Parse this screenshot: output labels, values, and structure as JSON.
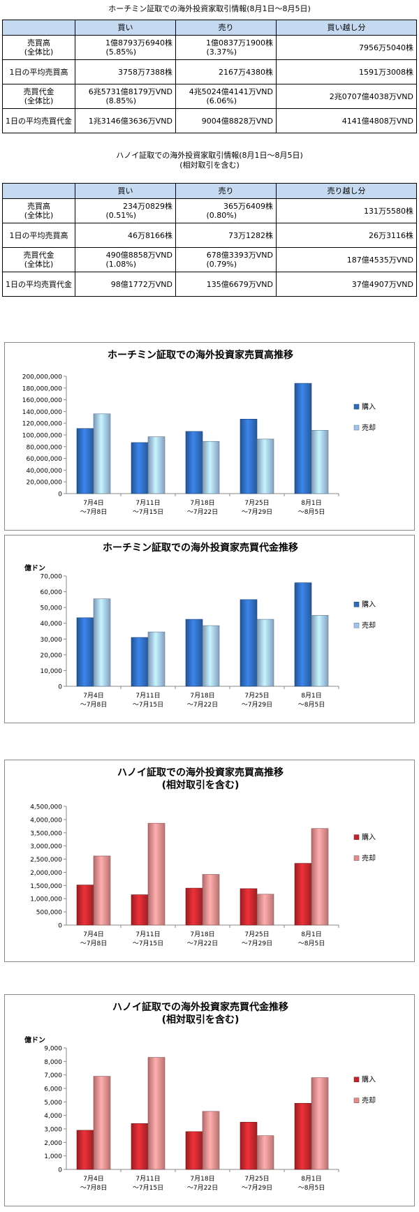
{
  "hcm_table": {
    "title": "ホーチミン証取での海外投資家取引情報(8月1日〜8月5日)",
    "headers": [
      "",
      "買い",
      "売り",
      "買い越し分"
    ],
    "rows": [
      {
        "label": [
          "売買高",
          "(全体比)"
        ],
        "cells": [
          [
            "1億8793万6940株",
            "(5.85%)"
          ],
          [
            "1億0837万1900株",
            "(3.37%)"
          ],
          [
            "7956万5040株"
          ]
        ]
      },
      {
        "label": [
          "1日の平均売買高"
        ],
        "cells": [
          [
            "3758万7388株"
          ],
          [
            "2167万4380株"
          ],
          [
            "1591万3008株"
          ]
        ]
      },
      {
        "label": [
          "売買代金",
          "(全体比)"
        ],
        "cells": [
          [
            "6兆5731億8179万VND",
            "(8.85%)"
          ],
          [
            "4兆5024億4141万VND",
            "(6.06%)"
          ],
          [
            "2兆0707億4038万VND"
          ]
        ]
      },
      {
        "label": [
          "1日の平均売買代金"
        ],
        "cells": [
          [
            "1兆3146億3636万VND"
          ],
          [
            "9004億8828万VND"
          ],
          [
            "4141億4808万VND"
          ]
        ]
      }
    ]
  },
  "hanoi_table": {
    "title": "ハノイ証取での海外投資家取引情報(8月1日〜8月5日)",
    "subtitle": "(相対取引を含む)",
    "headers": [
      "",
      "買い",
      "売り",
      "売り越し分"
    ],
    "rows": [
      {
        "label": [
          "売買高",
          "(全体比)"
        ],
        "cells": [
          [
            "234万0829株",
            "(0.51%)"
          ],
          [
            "365万6409株",
            "(0.80%)"
          ],
          [
            "131万5580株"
          ]
        ]
      },
      {
        "label": [
          "1日の平均売買高"
        ],
        "cells": [
          [
            "46万8166株"
          ],
          [
            "73万1282株"
          ],
          [
            "26万3116株"
          ]
        ]
      },
      {
        "label": [
          "売買代金",
          "(全体比)"
        ],
        "cells": [
          [
            "490億8858万VND",
            "(1.08%)"
          ],
          [
            "678億3393万VND",
            "(0.79%)"
          ],
          [
            "187億4535万VND"
          ]
        ]
      },
      {
        "label": [
          "1日の平均売買代金"
        ],
        "cells": [
          [
            "98億1772万VND"
          ],
          [
            "135億6679万VND"
          ],
          [
            "37億4907万VND"
          ]
        ]
      }
    ]
  },
  "chart_data": [
    {
      "type": "bar",
      "title": [
        "ホーチミン証取での海外投資家売買高推移"
      ],
      "unit_label": "",
      "categories": [
        [
          "7月4日",
          "〜7月8日"
        ],
        [
          "7月11日",
          "〜7月15日"
        ],
        [
          "7月18日",
          "〜7月22日"
        ],
        [
          "7月25日",
          "〜7月29日"
        ],
        [
          "8月1日",
          "〜8月5日"
        ]
      ],
      "series": [
        {
          "name": "購入",
          "values": [
            111000000,
            87000000,
            106000000,
            127000000,
            188000000
          ]
        },
        {
          "name": "売却",
          "values": [
            136000000,
            97000000,
            89000000,
            93000000,
            108000000
          ]
        }
      ],
      "ylim": [
        0,
        200000000
      ],
      "ytick_step": 20000000,
      "ytick_labels": [
        "0",
        "20,000,000",
        "40,000,000",
        "60,000,000",
        "80,000,000",
        "100,000,000",
        "120,000,000",
        "140,000,000",
        "160,000,000",
        "180,000,000",
        "200,000,000"
      ],
      "colors": [
        "#2f6bbd",
        "#9fc3ea"
      ],
      "legend": "right",
      "grid": false
    },
    {
      "type": "bar",
      "title": [
        "ホーチミン証取での海外投資家売買代金推移"
      ],
      "unit_label": "億ドン",
      "categories": [
        [
          "7月4日",
          "〜7月8日"
        ],
        [
          "7月11日",
          "〜7月15日"
        ],
        [
          "7月18日",
          "〜7月22日"
        ],
        [
          "7月25日",
          "〜7月29日"
        ],
        [
          "8月1日",
          "〜8月5日"
        ]
      ],
      "series": [
        {
          "name": "購入",
          "values": [
            43500,
            31000,
            42500,
            55000,
            65700
          ]
        },
        {
          "name": "売却",
          "values": [
            55500,
            34500,
            38500,
            42500,
            45000
          ]
        }
      ],
      "ylim": [
        0,
        70000
      ],
      "ytick_step": 10000,
      "ytick_labels": [
        "0",
        "10,000",
        "20,000",
        "30,000",
        "40,000",
        "50,000",
        "60,000",
        "70,000"
      ],
      "colors": [
        "#2f6bbd",
        "#9fc3ea"
      ],
      "legend": "right",
      "grid": false
    },
    {
      "type": "bar",
      "title": [
        "ハノイ証取での海外投資家売買高推移",
        "(相対取引を含む)"
      ],
      "unit_label": "",
      "categories": [
        [
          "7月4日",
          "〜7月8日"
        ],
        [
          "7月11日",
          "〜7月15日"
        ],
        [
          "7月18日",
          "〜7月22日"
        ],
        [
          "7月25日",
          "〜7月29日"
        ],
        [
          "8月1日",
          "〜8月5日"
        ]
      ],
      "series": [
        {
          "name": "購入",
          "values": [
            1520000,
            1150000,
            1400000,
            1380000,
            2340000
          ]
        },
        {
          "name": "売却",
          "values": [
            2620000,
            3860000,
            1920000,
            1170000,
            3660000
          ]
        }
      ],
      "ylim": [
        0,
        4500000
      ],
      "ytick_step": 500000,
      "ytick_labels": [
        "0",
        "500,000",
        "1,000,000",
        "1,500,000",
        "2,000,000",
        "2,500,000",
        "3,000,000",
        "3,500,000",
        "4,000,000",
        "4,500,000"
      ],
      "colors": [
        "#c0272d",
        "#e38b8b"
      ],
      "legend": "right",
      "grid": false
    },
    {
      "type": "bar",
      "title": [
        "ハノイ証取での海外投資家売買代金推移",
        "(相対取引を含む)"
      ],
      "unit_label": "億ドン",
      "categories": [
        [
          "7月4日",
          "〜7月8日"
        ],
        [
          "7月11日",
          "〜7月15日"
        ],
        [
          "7月18日",
          "〜7月22日"
        ],
        [
          "7月25日",
          "〜7月29日"
        ],
        [
          "8月1日",
          "〜8月5日"
        ]
      ],
      "series": [
        {
          "name": "購入",
          "values": [
            2900,
            3400,
            2800,
            3500,
            4900
          ]
        },
        {
          "name": "売却",
          "values": [
            6900,
            8300,
            4300,
            2500,
            6800
          ]
        }
      ],
      "ylim": [
        0,
        9000
      ],
      "ytick_step": 1000,
      "ytick_labels": [
        "0",
        "1,000",
        "2,000",
        "3,000",
        "4,000",
        "5,000",
        "6,000",
        "7,000",
        "8,000",
        "9,000"
      ],
      "colors": [
        "#c0272d",
        "#e38b8b"
      ],
      "legend": "right",
      "grid": false
    }
  ]
}
